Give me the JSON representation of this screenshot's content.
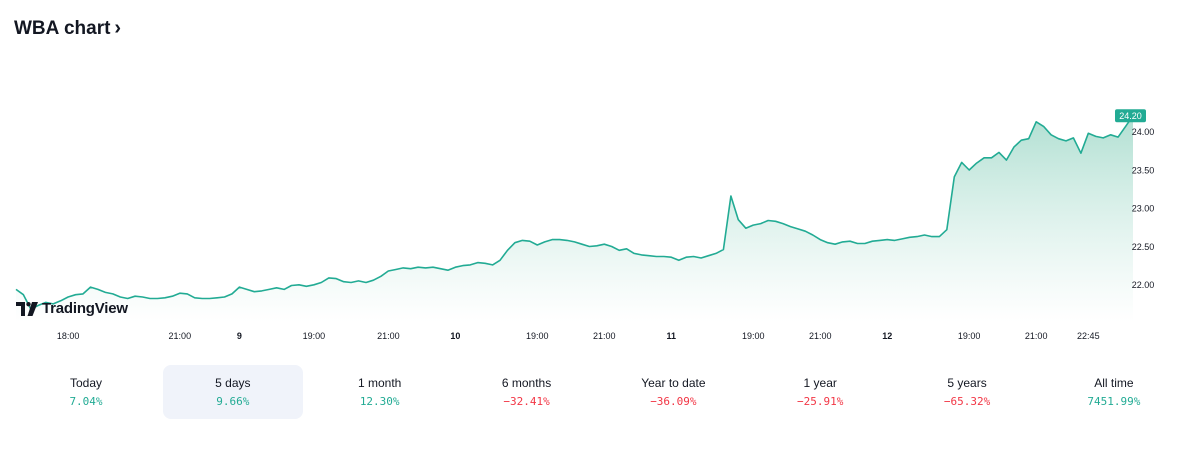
{
  "header": {
    "title": "WBA chart",
    "chevron_icon": "chevron-right-icon"
  },
  "logo": {
    "text": "TradingView",
    "icon": "tradingview-logo-icon"
  },
  "colors": {
    "line": "#22ab94",
    "fill_top": "#a8dccd",
    "fill_bottom": "#ffffff",
    "positive": "#22ab94",
    "negative": "#f23645",
    "active_period_bg": "#f0f3fa"
  },
  "chart_data": {
    "type": "area",
    "ylim": [
      21.5,
      24.3
    ],
    "y_ticks": [
      "24.00",
      "23.50",
      "23.00",
      "22.50",
      "22.00"
    ],
    "y_tick_values": [
      24.0,
      23.5,
      23.0,
      22.5,
      22.0
    ],
    "x_ticks": [
      {
        "label": "18:00",
        "index": 7
      },
      {
        "label": "21:00",
        "index": 22
      },
      {
        "label": "9",
        "index": 30
      },
      {
        "label": "19:00",
        "index": 40
      },
      {
        "label": "21:00",
        "index": 50
      },
      {
        "label": "10",
        "index": 59
      },
      {
        "label": "19:00",
        "index": 70
      },
      {
        "label": "21:00",
        "index": 79
      },
      {
        "label": "11",
        "index": 88
      },
      {
        "label": "19:00",
        "index": 99
      },
      {
        "label": "21:00",
        "index": 108
      },
      {
        "label": "12",
        "index": 117
      },
      {
        "label": "19:00",
        "index": 128
      },
      {
        "label": "21:00",
        "index": 137
      },
      {
        "label": "22:45",
        "index": 144
      }
    ],
    "last_price": "24.20",
    "values": [
      21.93,
      21.86,
      21.67,
      21.72,
      21.76,
      21.74,
      21.78,
      21.83,
      21.86,
      21.87,
      21.96,
      21.93,
      21.89,
      21.87,
      21.83,
      21.81,
      21.84,
      21.83,
      21.81,
      21.81,
      21.82,
      21.84,
      21.88,
      21.87,
      21.82,
      21.81,
      21.81,
      21.82,
      21.83,
      21.87,
      21.96,
      21.93,
      21.9,
      21.91,
      21.93,
      21.95,
      21.93,
      21.98,
      21.99,
      21.97,
      21.99,
      22.02,
      22.08,
      22.07,
      22.03,
      22.02,
      22.04,
      22.02,
      22.05,
      22.1,
      22.17,
      22.19,
      22.21,
      22.2,
      22.22,
      22.21,
      22.22,
      22.2,
      22.18,
      22.22,
      22.24,
      22.25,
      22.28,
      22.27,
      22.25,
      22.31,
      22.44,
      22.54,
      22.57,
      22.56,
      22.51,
      22.55,
      22.58,
      22.58,
      22.57,
      22.55,
      22.52,
      22.49,
      22.5,
      22.52,
      22.49,
      22.44,
      22.46,
      22.4,
      22.38,
      22.37,
      22.36,
      22.36,
      22.35,
      22.31,
      22.35,
      22.36,
      22.34,
      22.37,
      22.4,
      22.45,
      23.15,
      22.84,
      22.73,
      22.77,
      22.79,
      22.83,
      22.82,
      22.79,
      22.75,
      22.72,
      22.69,
      22.64,
      22.58,
      22.54,
      22.52,
      22.55,
      22.56,
      22.53,
      22.53,
      22.56,
      22.57,
      22.58,
      22.57,
      22.59,
      22.61,
      22.62,
      22.64,
      22.62,
      22.62,
      22.71,
      23.4,
      23.59,
      23.49,
      23.58,
      23.65,
      23.65,
      23.72,
      23.62,
      23.79,
      23.88,
      23.9,
      24.12,
      24.06,
      23.95,
      23.9,
      23.87,
      23.91,
      23.71,
      23.97,
      23.93,
      23.91,
      23.95,
      23.92,
      24.06,
      24.2
    ]
  },
  "periods": [
    {
      "label": "Today",
      "value": "7.04%",
      "sign": "pos",
      "active": false
    },
    {
      "label": "5 days",
      "value": "9.66%",
      "sign": "pos",
      "active": true
    },
    {
      "label": "1 month",
      "value": "12.30%",
      "sign": "pos",
      "active": false
    },
    {
      "label": "6 months",
      "value": "−32.41%",
      "sign": "neg",
      "active": false
    },
    {
      "label": "Year to date",
      "value": "−36.09%",
      "sign": "neg",
      "active": false
    },
    {
      "label": "1 year",
      "value": "−25.91%",
      "sign": "neg",
      "active": false
    },
    {
      "label": "5 years",
      "value": "−65.32%",
      "sign": "neg",
      "active": false
    },
    {
      "label": "All time",
      "value": "7451.99%",
      "sign": "pos",
      "active": false
    }
  ]
}
